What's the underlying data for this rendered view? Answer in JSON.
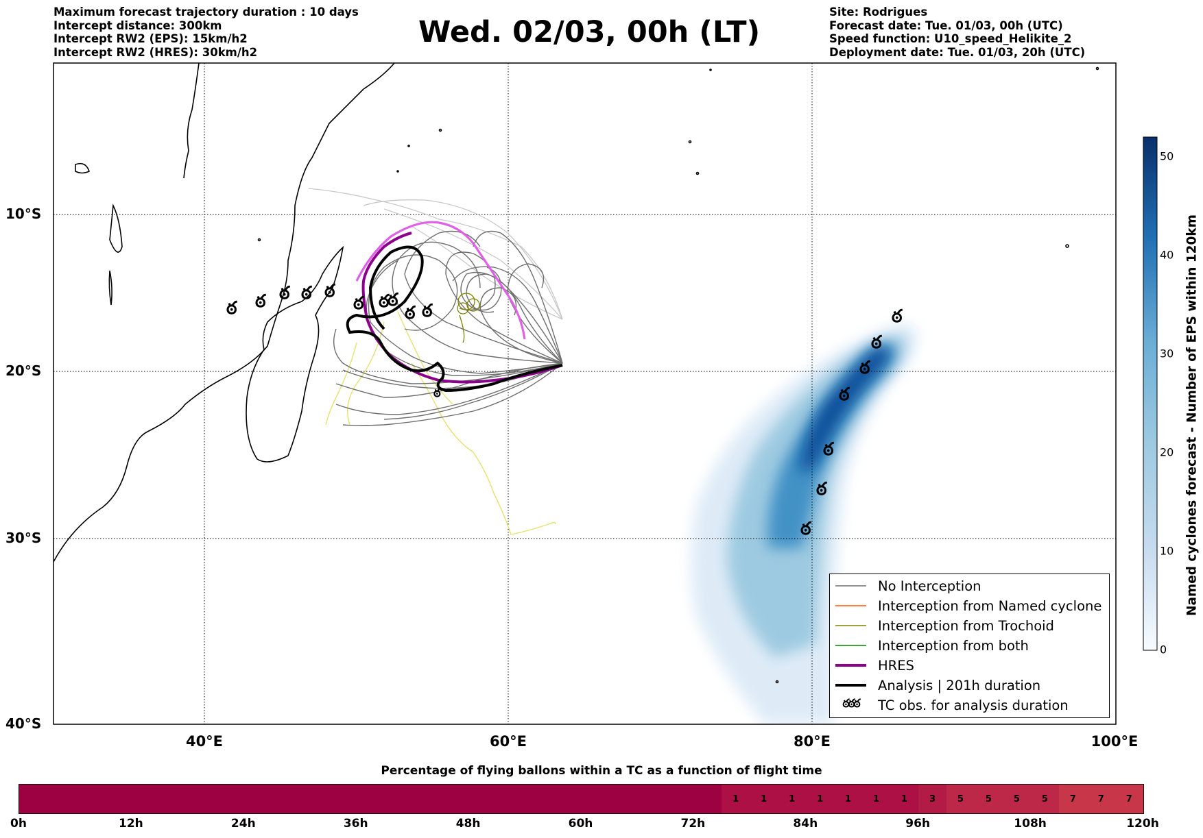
{
  "header": {
    "left": [
      "Maximum forecast trajectory duration : 10 days",
      "Intercept distance: 300km",
      "Intercept RW2 (EPS):  15km/h2",
      "Intercept RW2 (HRES): 30km/h2"
    ],
    "title": "Wed. 02/03, 00h (LT)",
    "right": [
      "Site: Rodrigues",
      "Forecast date: Tue. 01/03, 00h (UTC)",
      "Speed function: U10_speed_Helikite_2",
      "Deployment date: Tue. 01/03, 20h (UTC)"
    ]
  },
  "map": {
    "lon_range": [
      30,
      100
    ],
    "lat_range": [
      -40,
      0
    ],
    "lat_labels": [
      "10°S",
      "20°S",
      "30°S",
      "40°S"
    ],
    "lon_labels": [
      "40°E",
      "60°E",
      "80°E",
      "100°E"
    ],
    "grid": "dotted",
    "colors": {
      "no_interception": "#6e6e6e",
      "named_cyclone": "#ff5500",
      "trochoid": "#808000",
      "both": "#008000",
      "hres": "#8b008b",
      "analysis": "#000000",
      "light_tracks": "#c8c8c8",
      "yellow_tracks": "#e8e070",
      "hres_future": "#e060e8"
    }
  },
  "legend": {
    "position": "lower-right",
    "items": [
      {
        "label": "No Interception",
        "icon": "thin-gray-line"
      },
      {
        "label": "Interception from Named cyclone",
        "icon": "thin-orange-line"
      },
      {
        "label": "Interception from Trochoid",
        "icon": "thin-olive-line"
      },
      {
        "label": "Interception from both",
        "icon": "thin-green-line"
      },
      {
        "label": "HRES",
        "icon": "thick-purple-line"
      },
      {
        "label": "Analysis | 201h duration",
        "icon": "thick-black-line"
      },
      {
        "label": "TC obs. for analysis duration",
        "icon": "cyclone-symbols",
        "symbols": "ఠఠఠ"
      }
    ]
  },
  "colorbar": {
    "title": "Named cyclones forecast - Number of EPS within 120km",
    "ticks": [
      "50",
      "40",
      "30",
      "20",
      "10",
      "0"
    ],
    "range": [
      0,
      52
    ],
    "colormap": "Blues"
  },
  "chart_data": {
    "type": "heatmap",
    "title": "Percentage of flying ballons within a TC as a function of flight time",
    "x_ticks": [
      "0h",
      "12h",
      "24h",
      "36h",
      "48h",
      "60h",
      "72h",
      "84h",
      "96h",
      "108h",
      "120h"
    ],
    "x_range": [
      0,
      120
    ],
    "bin_hours": 3,
    "values": [
      0,
      0,
      0,
      0,
      0,
      0,
      0,
      0,
      0,
      0,
      0,
      0,
      0,
      0,
      0,
      0,
      0,
      0,
      0,
      0,
      0,
      0,
      0,
      0,
      0,
      1,
      1,
      1,
      1,
      1,
      1,
      1,
      3,
      5,
      5,
      5,
      5,
      7,
      7,
      7
    ]
  }
}
